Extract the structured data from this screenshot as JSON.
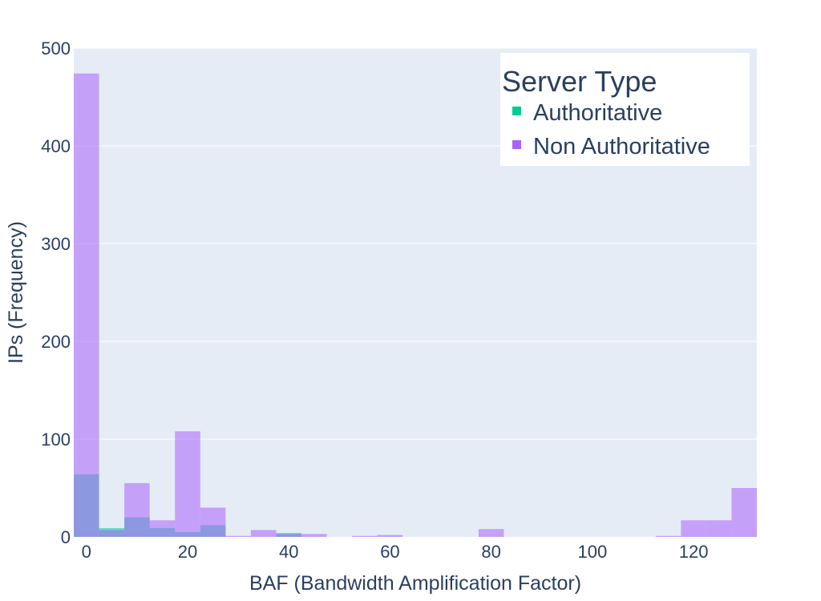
{
  "chart_data": {
    "type": "bar",
    "barmode": "overlay",
    "xlabel": "BAF (Bandwidth Amplification Factor)",
    "ylabel": "IPs (Frequency)",
    "xlim": [
      -2.5,
      132.5
    ],
    "ylim": [
      0,
      500
    ],
    "bin_width": 5,
    "x_ticks": [
      0,
      20,
      40,
      60,
      80,
      100,
      120
    ],
    "y_ticks": [
      0,
      100,
      200,
      300,
      400,
      500
    ],
    "grid": true,
    "legend": {
      "title": "Server Type",
      "placement": "top-right"
    },
    "series": [
      {
        "name": "Authoritative",
        "color": "#00cc96",
        "bin_starts": [
          -2.5,
          2.5,
          7.5,
          12.5,
          17.5,
          22.5,
          27.5,
          32.5,
          37.5
        ],
        "values": [
          64,
          9,
          20,
          9,
          5,
          12,
          0,
          0,
          4
        ]
      },
      {
        "name": "Non Authoritative",
        "color": "#ab63fa",
        "bin_starts": [
          -2.5,
          2.5,
          7.5,
          12.5,
          17.5,
          22.5,
          27.5,
          32.5,
          37.5,
          42.5,
          52.5,
          57.5,
          77.5,
          112.5,
          117.5,
          122.5,
          127.5
        ],
        "values": [
          474,
          7,
          55,
          17,
          108,
          30,
          1,
          7,
          3,
          3,
          1,
          2,
          8,
          1,
          17,
          17,
          50
        ]
      }
    ]
  }
}
